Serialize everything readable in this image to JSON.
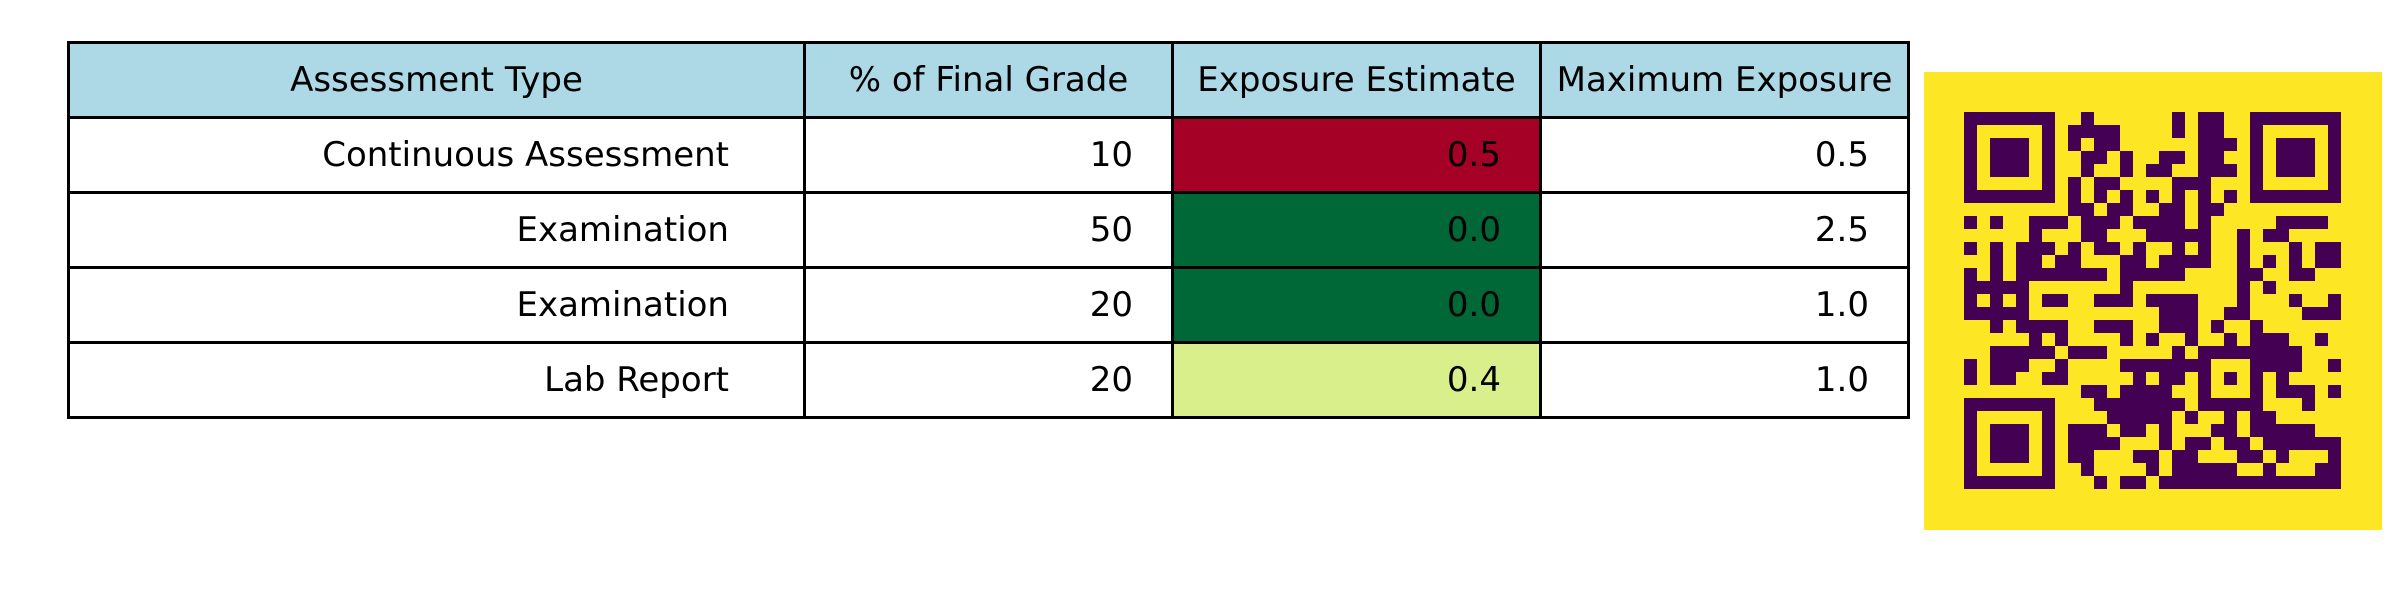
{
  "chart_data": {
    "type": "table",
    "columns": [
      "Assessment Type",
      "% of Final Grade",
      "Exposure Estimate",
      "Maximum Exposure"
    ],
    "rows": [
      [
        "Continuous Assessment",
        "10",
        "0.5",
        "0.5"
      ],
      [
        "Examination",
        "50",
        "0.0",
        "2.5"
      ],
      [
        "Examination",
        "20",
        "0.0",
        "1.0"
      ],
      [
        "Lab Report",
        "20",
        "0.4",
        "1.0"
      ]
    ],
    "highlight_column": 2,
    "highlight_colors": [
      "#a50026",
      "#006837",
      "#006837",
      "#d9ef8b"
    ],
    "header_color": "#add8e6"
  },
  "qr_code": {
    "icon": "qr-code-icon",
    "background_color": "#fde725",
    "module_color": "#440154"
  }
}
